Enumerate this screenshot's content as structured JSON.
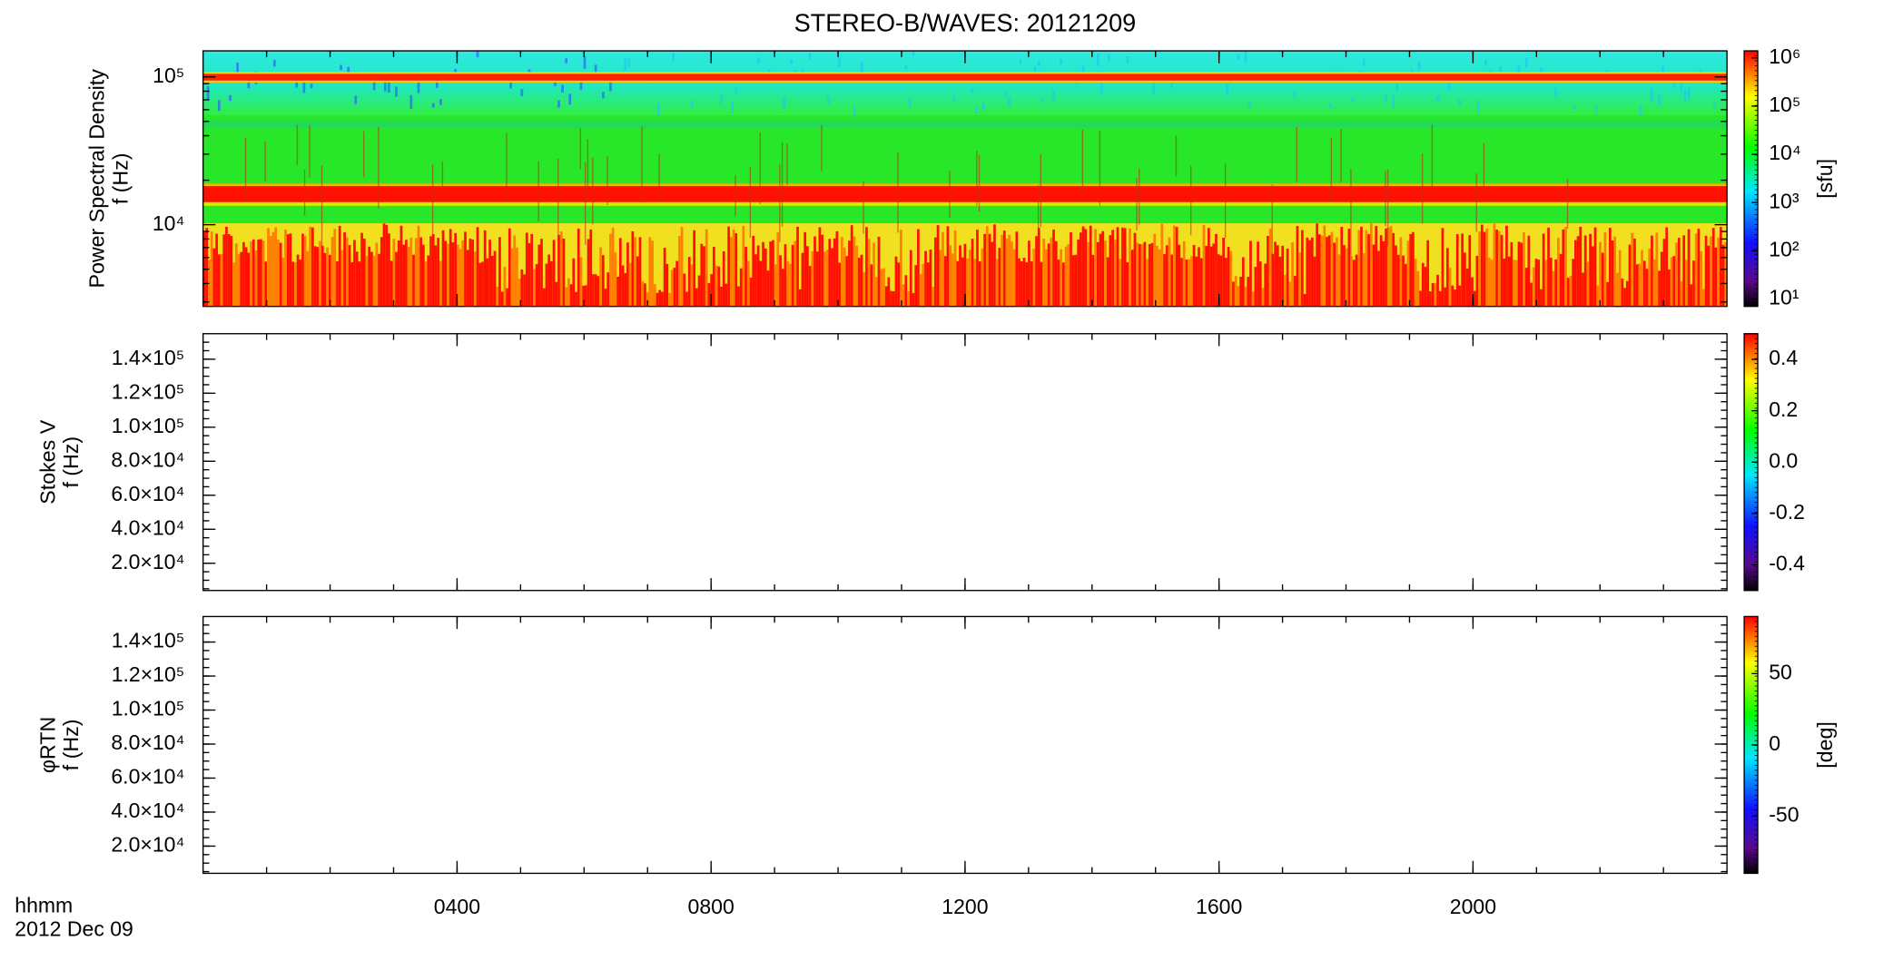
{
  "chart_data": [
    {
      "type": "spectrogram",
      "title": "STEREO-B/WAVES: 20121209",
      "ylabel": [
        "Power Spectral Density",
        "f (Hz)"
      ],
      "ylog": true,
      "ylim": [
        2800,
        150000
      ],
      "yticks": [
        {
          "value": 10000,
          "label": "10⁴"
        },
        {
          "value": 100000,
          "label": "10⁵"
        }
      ],
      "zlog": true,
      "zlim": [
        7,
        1400000
      ],
      "zticks": [
        {
          "value": 10,
          "label": "10¹"
        },
        {
          "value": 100,
          "label": "10²"
        },
        {
          "value": 1000,
          "label": "10³"
        },
        {
          "value": 10000,
          "label": "10⁴"
        },
        {
          "value": 100000,
          "label": "10⁵"
        },
        {
          "value": 1000000,
          "label": "10⁶"
        }
      ],
      "zlabel": "[sfu]"
    },
    {
      "type": "spectrogram",
      "ylabel": [
        "Stokes V",
        "f (Hz)"
      ],
      "ylog": false,
      "ylim": [
        4000,
        155000
      ],
      "yticks": [
        {
          "value": 20000,
          "label": "2.0×10⁴"
        },
        {
          "value": 40000,
          "label": "4.0×10⁴"
        },
        {
          "value": 60000,
          "label": "6.0×10⁴"
        },
        {
          "value": 80000,
          "label": "8.0×10⁴"
        },
        {
          "value": 100000,
          "label": "1.0×10⁵"
        },
        {
          "value": 120000,
          "label": "1.2×10⁵"
        },
        {
          "value": 140000,
          "label": "1.4×10⁵"
        }
      ],
      "zlog": false,
      "zlim": [
        -0.5,
        0.5
      ],
      "zticks": [
        -0.4,
        -0.2,
        {
          "value": 0,
          "label": "0.0"
        },
        0.2,
        0.4
      ]
    },
    {
      "type": "spectrogram",
      "ylabel": [
        "φRTN",
        "f (Hz)"
      ],
      "ylog": false,
      "ylim": [
        4000,
        155000
      ],
      "yticks": [
        {
          "value": 20000,
          "label": "2.0×10⁴"
        },
        {
          "value": 40000,
          "label": "4.0×10⁴"
        },
        {
          "value": 60000,
          "label": "6.0×10⁴"
        },
        {
          "value": 80000,
          "label": "8.0×10⁴"
        },
        {
          "value": 100000,
          "label": "1.0×10⁵"
        },
        {
          "value": 120000,
          "label": "1.2×10⁵"
        },
        {
          "value": 140000,
          "label": "1.4×10⁵"
        }
      ],
      "zlog": false,
      "zlim": [
        -90,
        90
      ],
      "zticks": [
        -50,
        0,
        50
      ],
      "zlabel": "[deg]",
      "xlim": [
        0,
        24
      ],
      "xticks": [
        {
          "value": 4,
          "label": "0400"
        },
        {
          "value": 8,
          "label": "0800"
        },
        {
          "value": 12,
          "label": "1200"
        },
        {
          "value": 16,
          "label": "1600"
        },
        {
          "value": 20,
          "label": "2000"
        }
      ],
      "xlabel": [
        "hhmm",
        "2012 Dec 09"
      ]
    }
  ]
}
